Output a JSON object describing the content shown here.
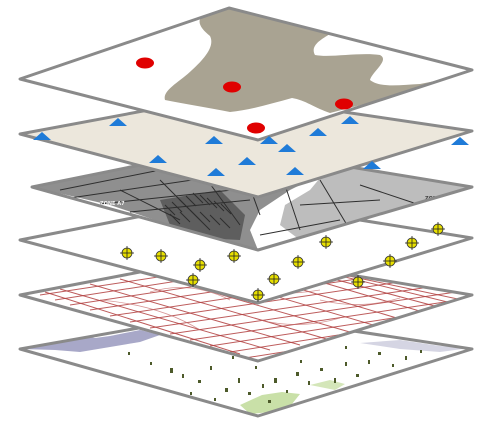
{
  "diagram": {
    "kind": "stacked GIS layers",
    "layer_count": 6,
    "layers": [
      {
        "id": "polygon-layer",
        "fill": "#ffffff",
        "shape_color": "#a9a392",
        "marker": "red-circle",
        "marker_color": "#e00000"
      },
      {
        "id": "triangle-point-layer",
        "fill": "#ece7dc",
        "marker": "blue-triangle",
        "marker_color": "#1f7bd8"
      },
      {
        "id": "zoning-map-layer",
        "fill": "#8f8f8f",
        "labels": [
          "ZONE A7",
          "ZONE A",
          "ZONE A"
        ]
      },
      {
        "id": "crosshair-point-layer",
        "fill": "#ffffff",
        "marker": "yellow-crosshair",
        "marker_color": "#e8e000"
      },
      {
        "id": "street-grid-layer",
        "fill": "#ffffff",
        "line_color": "#b24040"
      },
      {
        "id": "landcover-layer",
        "fill": "#ffffff",
        "patch_colors": [
          "#a8a8c8",
          "#4d5a2a",
          "#c9e0a8"
        ]
      }
    ],
    "outline_color": "#8a8a8a"
  }
}
